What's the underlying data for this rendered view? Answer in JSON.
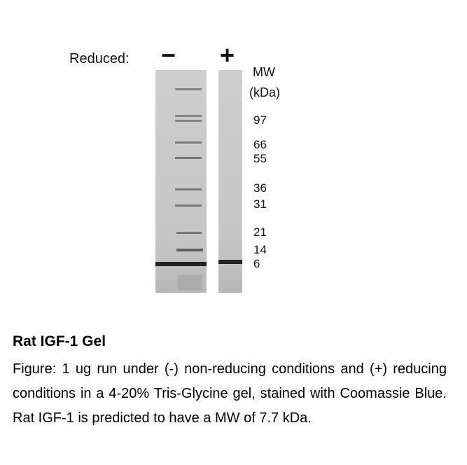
{
  "header": {
    "reduced_label": "Reduced:",
    "lane_minus": "−",
    "lane_plus": "+"
  },
  "mw_axis": {
    "title": "MW",
    "unit": "(kDa)",
    "markers": [
      "97",
      "66",
      "55",
      "36",
      "31",
      "21",
      "14",
      "6"
    ]
  },
  "caption": {
    "title": "Rat IGF-1 Gel",
    "text": "Figure: 1 ug run under (-) non-reducing conditions and (+) reducing conditions in a 4-20% Tris-Glycine gel, stained with Coomassie Blue. Rat IGF-1 is predicted to have a MW of 7.7 kDa."
  }
}
